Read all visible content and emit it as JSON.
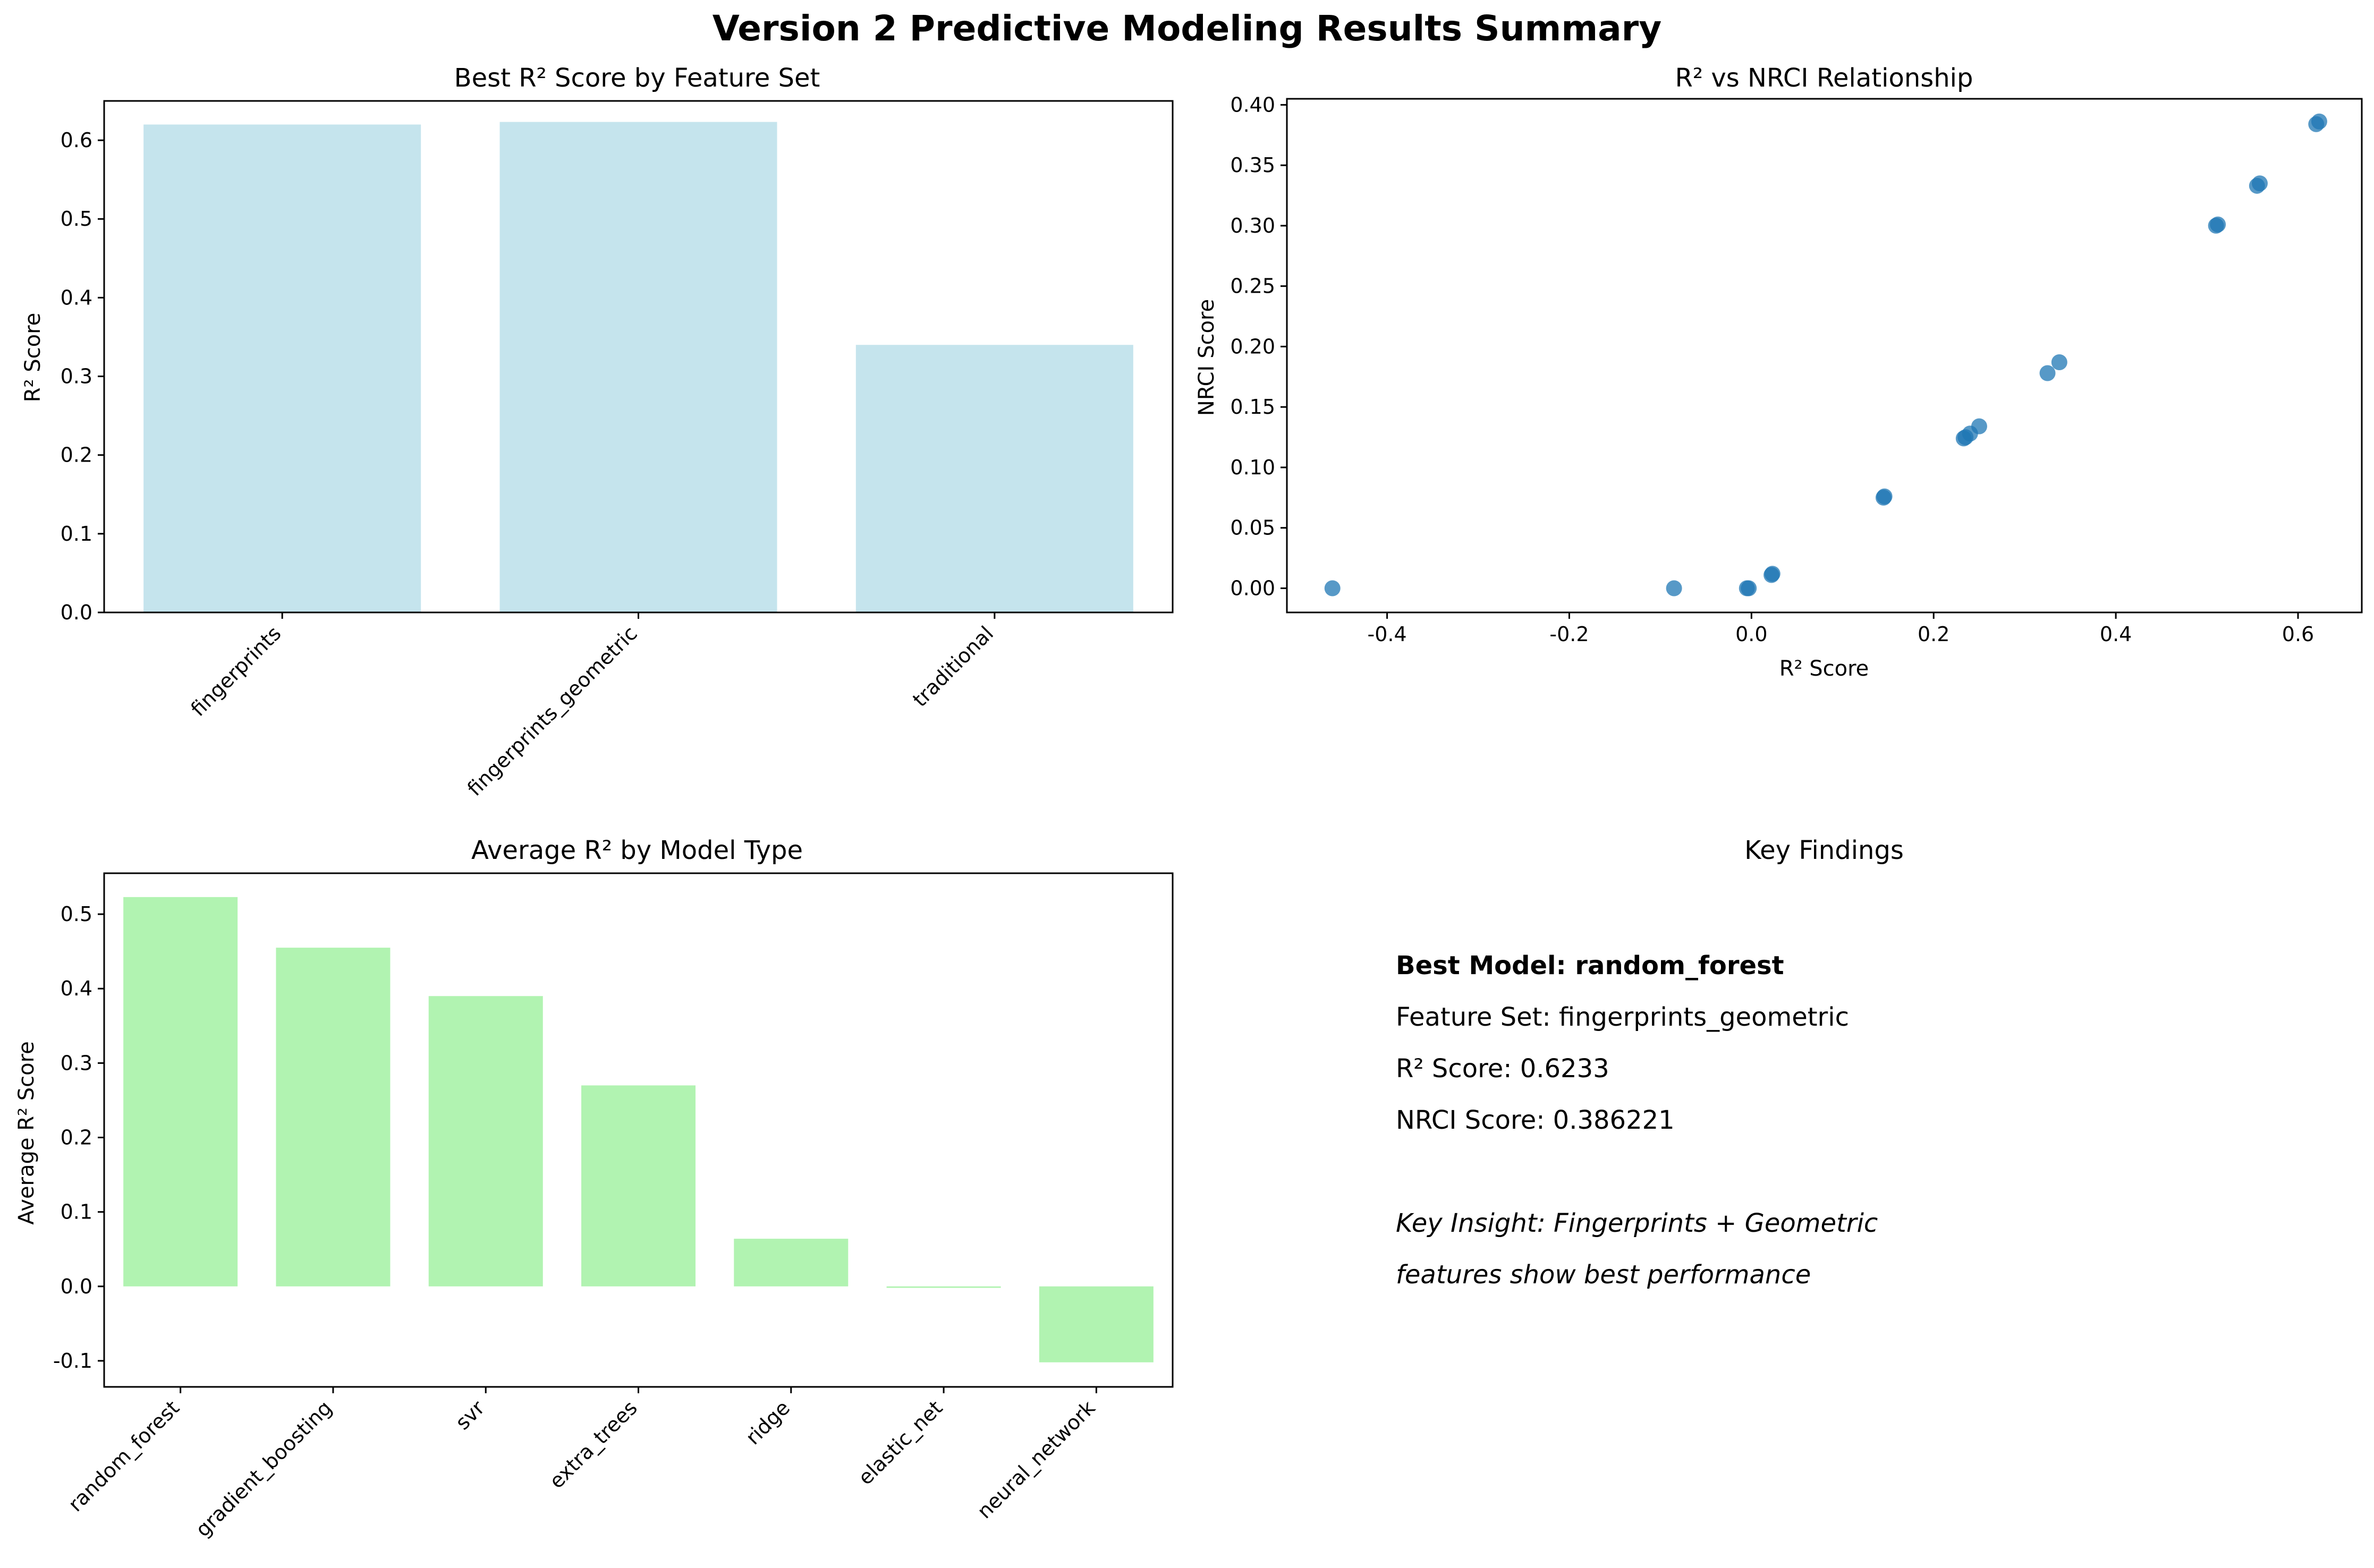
{
  "figure": {
    "title": "Version 2 Predictive Modeling Results Summary"
  },
  "chart_data": [
    {
      "type": "bar",
      "title": "Best R² Score by Feature Set",
      "xlabel": "",
      "ylabel": "R² Score",
      "categories": [
        "fingerprints",
        "fingerprints_geometric",
        "traditional"
      ],
      "values": [
        0.62,
        0.6233,
        0.34
      ],
      "ylim": [
        0,
        0.65
      ],
      "yticks": [
        "0.0",
        "0.1",
        "0.2",
        "0.3",
        "0.4",
        "0.5",
        "0.6"
      ],
      "color": "#add8e6",
      "grid": false
    },
    {
      "type": "scatter",
      "title": "R² vs NRCI Relationship",
      "xlabel": "R² Score",
      "ylabel": "NRCI Score",
      "x": [
        -0.46,
        -0.085,
        -0.005,
        -0.003,
        0.022,
        0.023,
        0.145,
        0.146,
        0.233,
        0.235,
        0.24,
        0.25,
        0.325,
        0.338,
        0.51,
        0.512,
        0.555,
        0.558,
        0.62,
        0.6233
      ],
      "y": [
        0.0,
        0.0,
        0.0,
        0.0,
        0.011,
        0.012,
        0.075,
        0.076,
        0.124,
        0.125,
        0.128,
        0.134,
        0.178,
        0.187,
        0.3,
        0.301,
        0.333,
        0.335,
        0.384,
        0.386221
      ],
      "xlim": [
        -0.51,
        0.67
      ],
      "ylim": [
        -0.02,
        0.405
      ],
      "xticks": [
        "-0.4",
        "-0.2",
        "0.0",
        "0.2",
        "0.4",
        "0.6"
      ],
      "yticks": [
        "0.00",
        "0.05",
        "0.10",
        "0.15",
        "0.20",
        "0.25",
        "0.30",
        "0.35",
        "0.40"
      ],
      "color": "#1f77b4",
      "grid": false
    },
    {
      "type": "bar",
      "title": "Average R² by Model Type",
      "xlabel": "",
      "ylabel": "Average R² Score",
      "categories": [
        "random_forest",
        "gradient_boosting",
        "svr",
        "extra_trees",
        "ridge",
        "elastic_net",
        "neural_network"
      ],
      "values": [
        0.523,
        0.455,
        0.39,
        0.27,
        0.064,
        -0.002,
        -0.102
      ],
      "ylim": [
        -0.135,
        0.555
      ],
      "yticks": [
        "-0.1",
        "0.0",
        "0.1",
        "0.2",
        "0.3",
        "0.4",
        "0.5"
      ],
      "color": "#90ee90",
      "grid": false
    }
  ],
  "findings": {
    "title": "Key Findings",
    "best_model": "Best Model: random_forest",
    "feature_set": "Feature Set: fingerprints_geometric",
    "r2": "R² Score: 0.6233",
    "nrci": "NRCI Score: 0.386221",
    "insight_line1": "Key Insight: Fingerprints + Geometric",
    "insight_line2": "features show best performance"
  }
}
